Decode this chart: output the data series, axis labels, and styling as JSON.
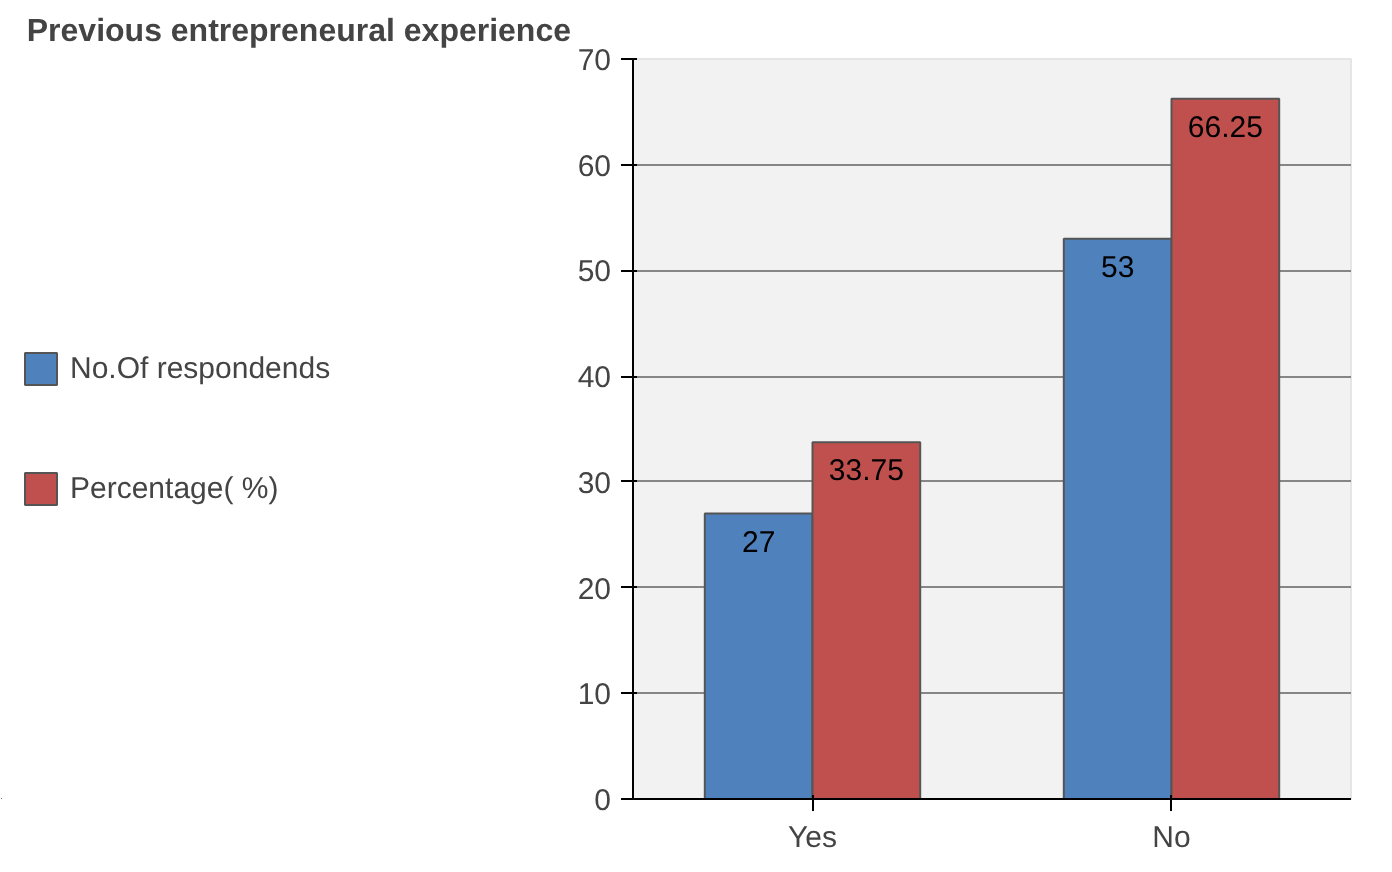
{
  "chart_data": {
    "type": "bar",
    "title": "Previous entrepreneural experience",
    "categories": [
      "Yes",
      "No"
    ],
    "series": [
      {
        "name": "No.Of respondends",
        "color": "#4f81bd",
        "values": [
          27,
          53
        ]
      },
      {
        "name": "Percentage( %)",
        "color": "#c0504d",
        "values": [
          33.75,
          66.25
        ]
      }
    ],
    "ylim": [
      0,
      70
    ],
    "yticks": [
      0,
      10,
      20,
      30,
      40,
      50,
      60,
      70
    ],
    "grid": "y",
    "legend": "left",
    "data_labels": true
  }
}
